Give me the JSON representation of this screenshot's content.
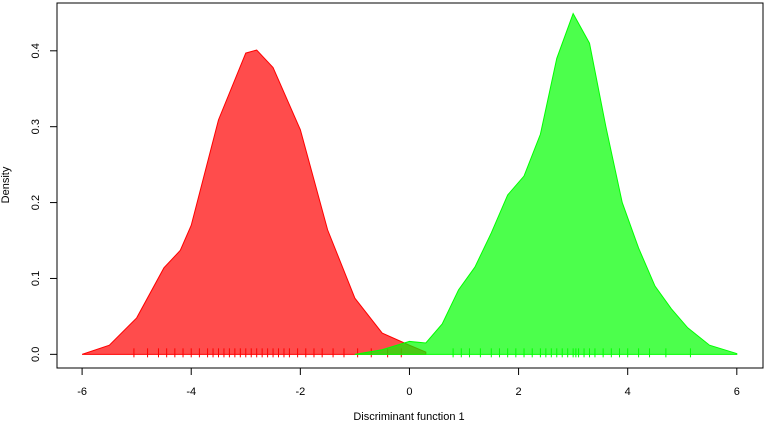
{
  "chart_data": {
    "type": "density",
    "xlabel": "Discriminant function 1",
    "ylabel": "Density",
    "xlim": [
      -6.46,
      6.48
    ],
    "ylim": [
      -0.018,
      0.463
    ],
    "xticks": [
      -6,
      -4,
      -2,
      0,
      2,
      4,
      6
    ],
    "yticks": [
      {
        "value": 0,
        "label": "0.0"
      },
      0.1,
      0.2,
      0.3,
      0.4
    ],
    "alpha": 0.7,
    "series": [
      {
        "color": "#ff0000",
        "x": [
          -6.0,
          -5.5,
          -5.0,
          -4.5,
          -4.2,
          -4.0,
          -3.5,
          -3.0,
          -2.8,
          -2.5,
          -2.0,
          -1.5,
          -1.0,
          -0.5,
          0.0,
          0.3
        ],
        "values": [
          0.0,
          0.012,
          0.048,
          0.114,
          0.137,
          0.17,
          0.309,
          0.397,
          0.401,
          0.378,
          0.296,
          0.164,
          0.074,
          0.028,
          0.012,
          0.003
        ],
        "rug": [
          -5.05,
          -4.8,
          -4.6,
          -4.45,
          -4.3,
          -4.15,
          -4.0,
          -3.85,
          -3.7,
          -3.6,
          -3.5,
          -3.4,
          -3.3,
          -3.2,
          -3.1,
          -3.0,
          -2.9,
          -2.8,
          -2.7,
          -2.6,
          -2.5,
          -2.4,
          -2.3,
          -2.2,
          -2.05,
          -1.9,
          -1.75,
          -1.6,
          -1.4,
          -1.2,
          -0.95,
          -0.7,
          -0.4,
          -0.15
        ]
      },
      {
        "color": "#00ff00",
        "x": [
          -1.0,
          -0.5,
          0.0,
          0.3,
          0.6,
          0.9,
          1.2,
          1.5,
          1.8,
          2.1,
          2.4,
          2.7,
          3.0,
          3.3,
          3.6,
          3.9,
          4.2,
          4.5,
          4.8,
          5.1,
          5.5,
          6.0
        ],
        "values": [
          0.0,
          0.006,
          0.017,
          0.015,
          0.04,
          0.085,
          0.115,
          0.16,
          0.21,
          0.235,
          0.29,
          0.39,
          0.449,
          0.41,
          0.3,
          0.2,
          0.14,
          0.09,
          0.06,
          0.035,
          0.012,
          0.001
        ],
        "rug": [
          0.8,
          0.95,
          1.1,
          1.3,
          1.5,
          1.65,
          1.8,
          1.95,
          2.1,
          2.25,
          2.4,
          2.5,
          2.6,
          2.7,
          2.8,
          2.9,
          3.0,
          3.05,
          3.1,
          3.2,
          3.3,
          3.4,
          3.55,
          3.7,
          3.85,
          4.0,
          4.2,
          4.4,
          4.7,
          5.15
        ]
      }
    ]
  }
}
